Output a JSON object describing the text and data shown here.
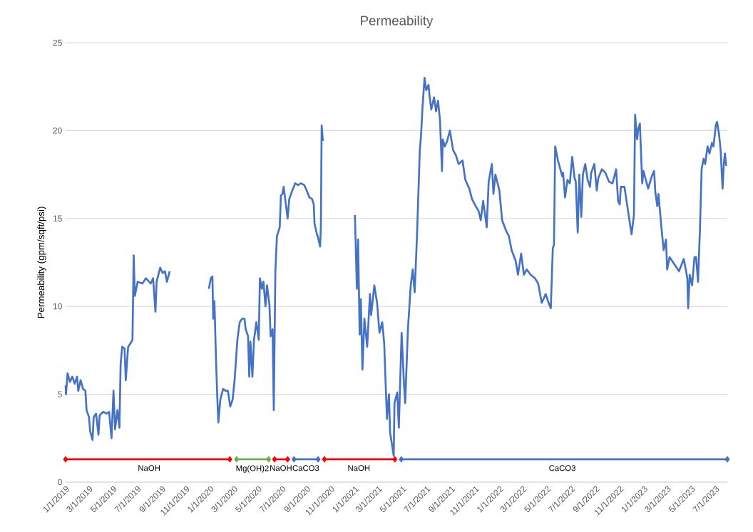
{
  "chart_data": {
    "type": "line",
    "title": "Permeability",
    "ylabel": "Permeability (gpm/sqft/psi)",
    "xlim": [
      "2019-01-01",
      "2023-07-31"
    ],
    "ylim": [
      0,
      25
    ],
    "yticks": [
      0,
      5,
      10,
      15,
      20,
      25
    ],
    "xticks": [
      {
        "value": "2019-01-01",
        "label": "1/1/2019"
      },
      {
        "value": "2019-03-01",
        "label": "3/1/2019"
      },
      {
        "value": "2019-05-01",
        "label": "5/1/2019"
      },
      {
        "value": "2019-07-01",
        "label": "7/1/2019"
      },
      {
        "value": "2019-09-01",
        "label": "9/1/2019"
      },
      {
        "value": "2019-11-01",
        "label": "11/1/2019"
      },
      {
        "value": "2020-01-01",
        "label": "1/1/2020"
      },
      {
        "value": "2020-03-01",
        "label": "3/1/2020"
      },
      {
        "value": "2020-05-01",
        "label": "5/1/2020"
      },
      {
        "value": "2020-07-01",
        "label": "7/1/2020"
      },
      {
        "value": "2020-09-01",
        "label": "9/1/2020"
      },
      {
        "value": "2020-11-01",
        "label": "11/1/2020"
      },
      {
        "value": "2021-01-01",
        "label": "1/1/2021"
      },
      {
        "value": "2021-03-01",
        "label": "3/1/2021"
      },
      {
        "value": "2021-05-01",
        "label": "5/1/2021"
      },
      {
        "value": "2021-07-01",
        "label": "7/1/2021"
      },
      {
        "value": "2021-09-01",
        "label": "9/1/2021"
      },
      {
        "value": "2021-11-01",
        "label": "11/1/2021"
      },
      {
        "value": "2022-01-01",
        "label": "1/1/2022"
      },
      {
        "value": "2022-03-01",
        "label": "3/1/2022"
      },
      {
        "value": "2022-05-01",
        "label": "5/1/2022"
      },
      {
        "value": "2022-07-01",
        "label": "7/1/2022"
      },
      {
        "value": "2022-09-01",
        "label": "9/1/2022"
      },
      {
        "value": "2022-11-01",
        "label": "11/1/2022"
      },
      {
        "value": "2023-01-01",
        "label": "1/1/2023"
      },
      {
        "value": "2023-03-01",
        "label": "3/1/2023"
      },
      {
        "value": "2023-05-01",
        "label": "5/1/2023"
      },
      {
        "value": "2023-07-01",
        "label": "7/1/2023"
      }
    ],
    "grid": "y",
    "marker": "none",
    "line_style": "solid",
    "x": [
      "2019-01-01",
      "2019-01-02",
      "2019-01-06",
      "2019-01-12",
      "2019-01-18",
      "2019-01-24",
      "2019-01-30",
      "2019-02-02",
      "2019-02-08",
      "2019-02-14",
      "2019-02-20",
      "2019-02-23",
      "2019-03-01",
      "2019-03-04",
      "2019-03-10",
      "2019-03-13",
      "2019-03-19",
      "2019-03-25",
      "2019-03-28",
      "2019-04-06",
      "2019-04-15",
      "2019-04-21",
      "2019-04-27",
      "2019-05-02",
      "2019-05-06",
      "2019-05-12",
      "2019-05-17",
      "2019-05-20",
      "2019-05-24",
      "2019-05-30",
      "2019-06-02",
      "2019-06-08",
      "2019-06-14",
      "2019-06-19",
      "2019-06-22",
      "2019-06-25",
      "2019-07-02",
      "2019-07-14",
      "2019-07-23",
      "2019-08-04",
      "2019-08-10",
      "2019-08-16",
      "2019-08-19",
      "2019-08-28",
      "2019-09-03",
      "2019-09-09",
      "2019-09-14",
      "2019-09-21",
      "2019-11-01",
      "2019-12-29",
      "2020-01-03",
      "2020-01-07",
      "2020-01-09",
      "2020-01-12",
      "2020-01-16",
      "2020-01-19",
      "2020-01-22",
      "2020-01-27",
      "2020-02-03",
      "2020-02-09",
      "2020-02-15",
      "2020-02-21",
      "2020-02-27",
      "2020-03-03",
      "2020-03-10",
      "2020-03-16",
      "2020-03-22",
      "2020-03-28",
      "2020-03-31",
      "2020-04-06",
      "2020-04-09",
      "2020-04-12",
      "2020-04-17",
      "2020-04-21",
      "2020-04-27",
      "2020-05-03",
      "2020-05-06",
      "2020-05-11",
      "2020-05-15",
      "2020-05-20",
      "2020-05-24",
      "2020-05-30",
      "2020-06-02",
      "2020-06-07",
      "2020-06-10",
      "2020-06-14",
      "2020-06-18",
      "2020-06-25",
      "2020-06-28",
      "2020-07-02",
      "2020-07-05",
      "2020-07-10",
      "2020-07-15",
      "2020-07-19",
      "2020-07-27",
      "2020-08-03",
      "2020-08-10",
      "2020-08-18",
      "2020-08-26",
      "2020-09-01",
      "2020-09-08",
      "2020-09-15",
      "2020-09-19",
      "2020-09-21",
      "2020-09-26",
      "2020-09-30",
      "2020-10-05",
      "2020-10-07",
      "2020-10-09",
      "2020-10-12",
      "2020-11-20",
      "2021-01-01",
      "2021-01-06",
      "2021-01-09",
      "2021-01-13",
      "2021-01-16",
      "2021-01-20",
      "2021-01-25",
      "2021-02-01",
      "2021-02-08",
      "2021-02-11",
      "2021-02-19",
      "2021-02-26",
      "2021-03-04",
      "2021-03-11",
      "2021-03-16",
      "2021-03-19",
      "2021-03-23",
      "2021-03-28",
      "2021-03-31",
      "2021-04-07",
      "2021-04-09",
      "2021-04-11",
      "2021-04-18",
      "2021-04-22",
      "2021-04-29",
      "2021-05-05",
      "2021-05-08",
      "2021-05-15",
      "2021-05-22",
      "2021-05-27",
      "2021-06-01",
      "2021-06-07",
      "2021-06-14",
      "2021-06-17",
      "2021-06-21",
      "2021-06-26",
      "2021-06-30",
      "2021-07-06",
      "2021-07-09",
      "2021-07-13",
      "2021-07-20",
      "2021-07-25",
      "2021-07-30",
      "2021-08-04",
      "2021-08-09",
      "2021-08-11",
      "2021-08-16",
      "2021-08-22",
      "2021-08-29",
      "2021-09-06",
      "2021-09-13",
      "2021-09-20",
      "2021-09-30",
      "2021-10-07",
      "2021-10-17",
      "2021-10-24",
      "2021-10-31",
      "2021-11-10",
      "2021-11-15",
      "2021-11-21",
      "2021-11-26",
      "2021-11-30",
      "2021-12-05",
      "2021-12-13",
      "2021-12-17",
      "2021-12-22",
      "2022-01-01",
      "2022-01-08",
      "2022-01-18",
      "2022-01-25",
      "2022-02-01",
      "2022-02-11",
      "2022-02-17",
      "2022-02-25",
      "2022-03-04",
      "2022-03-11",
      "2022-03-21",
      "2022-04-01",
      "2022-04-09",
      "2022-04-18",
      "2022-04-28",
      "2022-05-07",
      "2022-05-11",
      "2022-05-16",
      "2022-05-19",
      "2022-05-22",
      "2022-05-29",
      "2022-06-09",
      "2022-06-11",
      "2022-06-16",
      "2022-06-22",
      "2022-06-28",
      "2022-07-04",
      "2022-07-10",
      "2022-07-13",
      "2022-07-18",
      "2022-07-22",
      "2022-07-27",
      "2022-07-31",
      "2022-08-06",
      "2022-08-12",
      "2022-08-18",
      "2022-08-21",
      "2022-08-29",
      "2022-09-04",
      "2022-09-08",
      "2022-09-17",
      "2022-09-26",
      "2022-10-05",
      "2022-10-14",
      "2022-10-23",
      "2022-10-28",
      "2022-11-01",
      "2022-11-04",
      "2022-11-13",
      "2022-12-01",
      "2022-12-07",
      "2022-12-10",
      "2022-12-15",
      "2022-12-18",
      "2022-12-22",
      "2022-12-28",
      "2022-12-31",
      "2023-01-12",
      "2023-01-21",
      "2023-01-27",
      "2023-01-30",
      "2023-02-04",
      "2023-02-07",
      "2023-02-14",
      "2023-02-20",
      "2023-02-26",
      "2023-03-01",
      "2023-03-07",
      "2023-03-19",
      "2023-03-31",
      "2023-04-12",
      "2023-04-21",
      "2023-04-23",
      "2023-04-27",
      "2023-05-03",
      "2023-05-09",
      "2023-05-13",
      "2023-05-18",
      "2023-05-23",
      "2023-05-27",
      "2023-06-01",
      "2023-06-05",
      "2023-06-11",
      "2023-06-16",
      "2023-06-22",
      "2023-06-26",
      "2023-07-02",
      "2023-07-05",
      "2023-07-10",
      "2023-07-14",
      "2023-07-19",
      "2023-07-22",
      "2023-07-25",
      "2023-07-28"
    ],
    "series": [
      {
        "color": "#4472c4",
        "values": [
          5.5,
          5.0,
          6.2,
          5.7,
          6.0,
          5.6,
          6.0,
          5.2,
          5.8,
          5.3,
          5.2,
          4.1,
          3.7,
          2.9,
          2.4,
          3.7,
          3.9,
          2.7,
          3.8,
          4.0,
          3.9,
          4.0,
          2.5,
          5.2,
          3.0,
          4.1,
          3.1,
          6.7,
          7.7,
          7.6,
          5.8,
          7.7,
          7.9,
          8.1,
          12.9,
          10.6,
          11.4,
          11.3,
          11.6,
          11.3,
          11.6,
          9.7,
          11.4,
          12.2,
          11.9,
          12.0,
          11.4,
          12.0,
          null,
          11.0,
          11.6,
          11.7,
          9.3,
          10.3,
          7.0,
          5.0,
          3.4,
          4.7,
          5.3,
          5.2,
          5.2,
          4.3,
          4.7,
          5.8,
          8.1,
          9.1,
          9.3,
          9.3,
          8.7,
          8.3,
          6.0,
          8.0,
          6.0,
          8.1,
          9.1,
          8.1,
          11.6,
          11.0,
          11.4,
          10.0,
          11.2,
          10.1,
          8.3,
          8.7,
          4.1,
          12.0,
          14.0,
          14.5,
          16.3,
          16.4,
          16.8,
          15.9,
          15.0,
          16.1,
          16.6,
          17.0,
          16.9,
          17.0,
          16.9,
          16.6,
          16.2,
          16.1,
          15.8,
          14.7,
          14.2,
          13.9,
          13.4,
          14.5,
          20.3,
          19.4,
          null,
          15.2,
          11.0,
          13.8,
          8.4,
          10.4,
          6.4,
          9.3,
          7.7,
          10.7,
          9.5,
          11.2,
          10.2,
          8.5,
          9.1,
          7.9,
          6.0,
          3.6,
          5.0,
          2.8,
          1.8,
          1.5,
          4.5,
          5.1,
          3.1,
          8.5,
          5.6,
          4.5,
          8.7,
          11.2,
          12.1,
          10.8,
          14.1,
          18.9,
          19.7,
          21.4,
          23.0,
          22.3,
          22.6,
          21.9,
          21.2,
          21.9,
          21.1,
          21.7,
          20.6,
          17.7,
          19.5,
          19.1,
          19.4,
          20.0,
          18.9,
          18.6,
          18.1,
          18.3,
          17.2,
          16.7,
          16.1,
          15.8,
          15.4,
          14.9,
          16.0,
          15.2,
          14.5,
          17.1,
          18.1,
          16.4,
          17.5,
          16.6,
          14.9,
          14.3,
          14.0,
          13.2,
          12.6,
          11.8,
          13.0,
          11.8,
          12.1,
          11.8,
          11.6,
          11.3,
          10.2,
          10.7,
          10.1,
          9.9,
          13.3,
          13.5,
          19.1,
          18.3,
          17.4,
          17.6,
          16.2,
          17.2,
          17.0,
          18.5,
          17.3,
          17.1,
          14.2,
          17.5,
          15.1,
          17.5,
          18.1,
          17.2,
          16.8,
          17.6,
          18.1,
          16.6,
          17.3,
          17.8,
          17.6,
          17.1,
          17.0,
          17.8,
          16.0,
          15.8,
          16.8,
          16.8,
          14.1,
          15.2,
          20.9,
          19.5,
          20.1,
          20.4,
          17.0,
          17.7,
          16.7,
          17.4,
          17.7,
          16.5,
          15.7,
          16.4,
          14.6,
          13.2,
          13.8,
          12.1,
          12.8,
          12.4,
          12.0,
          12.7,
          11.6,
          9.9,
          11.8,
          11.2,
          12.8,
          12.8,
          11.4,
          14.5,
          17.8,
          18.4,
          18.1,
          19.1,
          18.7,
          19.3,
          19.1,
          20.3,
          20.5,
          19.8,
          18.9,
          16.7,
          18.1,
          18.7,
          18.0
        ]
      },
      {
        "type": "line",
        "marker": "diamond",
        "color": "#ff0000",
        "x": [
          "2019-01-01",
          "2020-02-20"
        ],
        "values": [
          1.3,
          1.3
        ]
      },
      {
        "type": "line",
        "marker": "diamond",
        "color": "#70ad47",
        "x": [
          "2020-03-08",
          "2020-05-28"
        ],
        "values": [
          1.3,
          1.3
        ]
      },
      {
        "type": "line",
        "marker": "diamond",
        "color": "#ff0000",
        "x": [
          "2020-06-12",
          "2020-07-15"
        ],
        "values": [
          1.3,
          1.3
        ]
      },
      {
        "type": "line",
        "marker": "diamond",
        "color": "#4472c4",
        "x": [
          "2020-07-31",
          "2020-09-30"
        ],
        "values": [
          1.3,
          1.3
        ]
      },
      {
        "type": "line",
        "marker": "diamond",
        "color": "#ff0000",
        "x": [
          "2020-10-16",
          "2021-04-12"
        ],
        "values": [
          1.3,
          1.3
        ]
      },
      {
        "type": "line",
        "marker": "diamond",
        "color": "#4472c4",
        "x": [
          "2021-04-28",
          "2023-07-31"
        ],
        "values": [
          1.3,
          1.3
        ]
      }
    ],
    "annotations": [
      {
        "text": "NaOH",
        "x": "2019-07-31",
        "y": 1.3
      },
      {
        "text": "Mg(OH)2",
        "x": "2020-04-17",
        "y": 1.3
      },
      {
        "text": "NaOH",
        "x": "2020-06-28",
        "y": 1.3
      },
      {
        "text": "CaCO3",
        "x": "2020-08-30",
        "y": 1.3
      },
      {
        "text": "NaOH",
        "x": "2021-01-11",
        "y": 1.3
      },
      {
        "text": "CaCO3",
        "x": "2022-06-09",
        "y": 1.3
      }
    ]
  }
}
